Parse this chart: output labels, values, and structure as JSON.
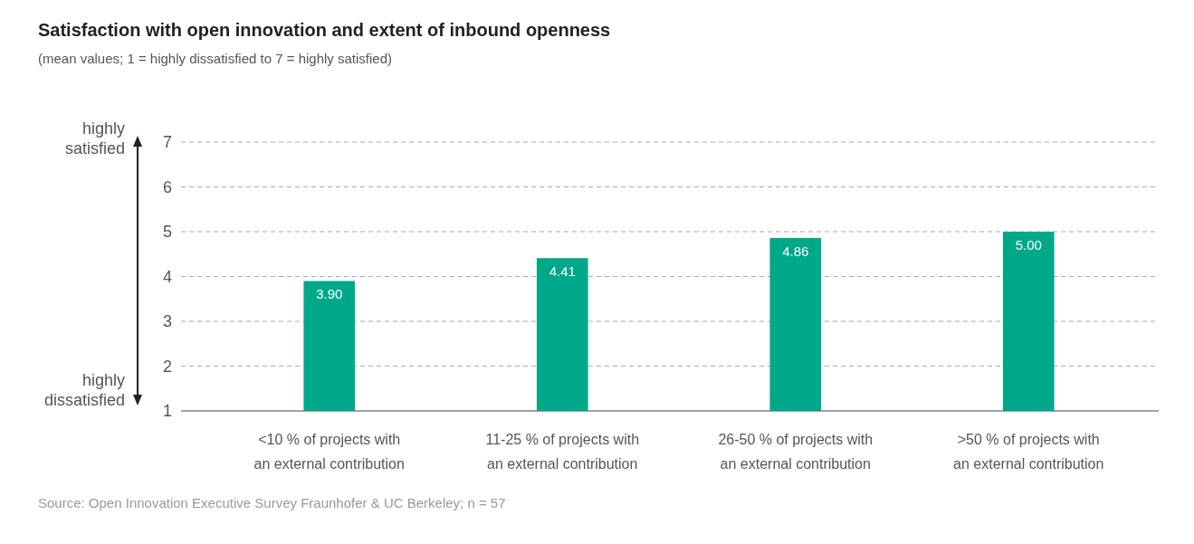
{
  "chart_data": {
    "type": "bar",
    "title": "Satisfaction with open innovation and extent of inbound openness",
    "subtitle": "(mean values; 1 = highly dissatisfied to 7 = highly satisfied)",
    "categories": [
      "<10 % of projects with an external contribution",
      "11-25 % of projects with an external contribution",
      "26-50 % of projects with an external contribution",
      ">50 % of projects with an external contribution"
    ],
    "values": [
      3.9,
      4.41,
      4.86,
      5.0
    ],
    "value_labels": [
      "3.90",
      "4.41",
      "4.86",
      "5.00"
    ],
    "color": "#00a88a",
    "ylim": [
      1,
      7
    ],
    "yticks": [
      1,
      2,
      3,
      4,
      5,
      6,
      7
    ],
    "grid": "y",
    "annotations": [
      "highly satisfied",
      "highly dissatisfied",
      "Source: Open Innovation Executive Survey Fraunhofer & UC Berkeley; n = 57"
    ]
  }
}
